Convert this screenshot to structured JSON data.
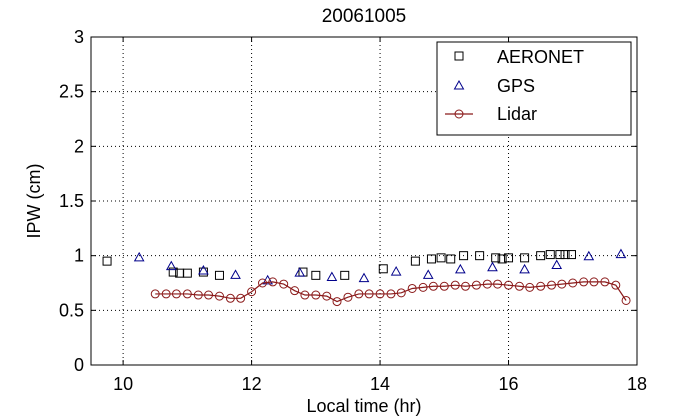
{
  "chart_data": {
    "type": "scatter",
    "title": "20061005",
    "xlabel": "Local time (hr)",
    "ylabel": "IPW (cm)",
    "xlim": [
      9.5,
      18
    ],
    "ylim": [
      0,
      3
    ],
    "xticks": [
      10,
      12,
      14,
      16,
      18
    ],
    "yticks": [
      0,
      0.5,
      1,
      1.5,
      2,
      2.5,
      3
    ],
    "xtick_labels": [
      "10",
      "12",
      "14",
      "16",
      "18"
    ],
    "ytick_labels": [
      "0",
      "0.5",
      "1",
      "1.5",
      "2",
      "2.5",
      "3"
    ],
    "grid": true,
    "legend_position": "top-right",
    "series": [
      {
        "name": "AERONET",
        "marker": "square",
        "color": "#000000",
        "x": [
          9.75,
          10.78,
          10.88,
          11.0,
          11.25,
          11.5,
          12.8,
          13.0,
          13.45,
          14.05,
          14.55,
          14.8,
          14.95,
          15.1,
          15.3,
          15.55,
          15.8,
          15.9,
          16.0,
          16.25,
          16.5,
          16.65,
          16.8,
          16.88,
          16.98
        ],
        "y": [
          0.95,
          0.85,
          0.84,
          0.84,
          0.85,
          0.82,
          0.85,
          0.82,
          0.82,
          0.88,
          0.95,
          0.97,
          0.98,
          0.97,
          1.0,
          1.0,
          0.98,
          0.97,
          0.98,
          0.98,
          1.0,
          1.01,
          1.01,
          1.01,
          1.01
        ]
      },
      {
        "name": "GPS",
        "marker": "triangle",
        "color": "#00008b",
        "x": [
          10.25,
          10.75,
          11.25,
          11.75,
          12.25,
          12.75,
          13.25,
          13.75,
          14.25,
          14.75,
          15.25,
          15.75,
          16.25,
          16.75,
          17.25,
          17.75
        ],
        "y": [
          0.98,
          0.9,
          0.86,
          0.82,
          0.77,
          0.84,
          0.8,
          0.79,
          0.85,
          0.82,
          0.87,
          0.89,
          0.87,
          0.91,
          0.99,
          1.01
        ]
      },
      {
        "name": "Lidar",
        "marker": "circle-line",
        "color": "#8b1a1a",
        "x": [
          10.5,
          10.67,
          10.83,
          11.0,
          11.17,
          11.33,
          11.5,
          11.67,
          11.83,
          12.0,
          12.17,
          12.33,
          12.5,
          12.67,
          12.83,
          13.0,
          13.17,
          13.33,
          13.5,
          13.67,
          13.83,
          14.0,
          14.17,
          14.33,
          14.5,
          14.67,
          14.83,
          15.0,
          15.17,
          15.33,
          15.5,
          15.67,
          15.83,
          16.0,
          16.17,
          16.33,
          16.5,
          16.67,
          16.83,
          17.0,
          17.17,
          17.33,
          17.5,
          17.67,
          17.83
        ],
        "y": [
          0.65,
          0.65,
          0.65,
          0.65,
          0.64,
          0.64,
          0.63,
          0.61,
          0.61,
          0.67,
          0.75,
          0.76,
          0.74,
          0.68,
          0.64,
          0.64,
          0.63,
          0.58,
          0.62,
          0.65,
          0.65,
          0.65,
          0.65,
          0.66,
          0.7,
          0.71,
          0.72,
          0.72,
          0.73,
          0.72,
          0.73,
          0.74,
          0.74,
          0.73,
          0.72,
          0.71,
          0.72,
          0.73,
          0.74,
          0.75,
          0.76,
          0.76,
          0.76,
          0.73,
          0.59
        ]
      }
    ]
  }
}
